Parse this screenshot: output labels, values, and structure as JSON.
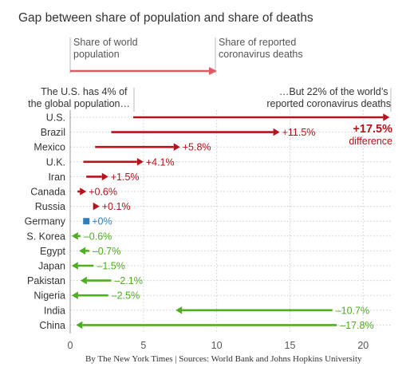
{
  "chart_data": {
    "type": "bar",
    "title": "Gap between share of population and share of deaths",
    "legend": {
      "population_label": [
        "Share of world",
        "population"
      ],
      "deaths_label": [
        "Share of reported",
        "coronavirus deaths"
      ]
    },
    "annotations": {
      "left": [
        "The U.S. has 4% of",
        "the global population…"
      ],
      "right": [
        "…But 22% of the world’s",
        "reported coronavirus deaths"
      ]
    },
    "highlight": {
      "value_label": "+17.5%",
      "sub_label": "difference"
    },
    "xlim": [
      0,
      22
    ],
    "xticks": [
      "0",
      "5",
      "10",
      "15",
      "20"
    ],
    "xtick_values": [
      0,
      5,
      10,
      15,
      20
    ],
    "rows": [
      {
        "country": "U.S.",
        "population": 4.3,
        "deaths": 21.8,
        "label": ""
      },
      {
        "country": "Brazil",
        "population": 2.8,
        "deaths": 14.3,
        "label": "+11.5%"
      },
      {
        "country": "Mexico",
        "population": 1.7,
        "deaths": 7.5,
        "label": "+5.8%"
      },
      {
        "country": "U.K.",
        "population": 0.9,
        "deaths": 5.0,
        "label": "+4.1%"
      },
      {
        "country": "Iran",
        "population": 1.1,
        "deaths": 2.6,
        "label": "+1.5%"
      },
      {
        "country": "Canada",
        "population": 0.5,
        "deaths": 1.1,
        "label": "+0.6%"
      },
      {
        "country": "Russia",
        "population": 1.9,
        "deaths": 2.0,
        "label": "+0.1%"
      },
      {
        "country": "Germany",
        "population": 1.1,
        "deaths": 1.1,
        "label": "+0%"
      },
      {
        "country": "S. Korea",
        "population": 0.7,
        "deaths": 0.1,
        "label": "–0.6%"
      },
      {
        "country": "Egypt",
        "population": 1.3,
        "deaths": 0.6,
        "label": "–0.7%"
      },
      {
        "country": "Japan",
        "population": 1.6,
        "deaths": 0.1,
        "label": "–1.5%"
      },
      {
        "country": "Pakistan",
        "population": 2.8,
        "deaths": 0.7,
        "label": "–2.1%"
      },
      {
        "country": "Nigeria",
        "population": 2.6,
        "deaths": 0.1,
        "label": "–2.5%"
      },
      {
        "country": "India",
        "population": 17.9,
        "deaths": 7.2,
        "label": "–10.7%"
      },
      {
        "country": "China",
        "population": 18.2,
        "deaths": 0.4,
        "label": "–17.8%"
      }
    ],
    "colors": {
      "increase": "#b5121b",
      "decrease": "#4daf1f",
      "neutral": "#2f7fbf",
      "legend_arrow": "#e05a62",
      "axis": "#999999",
      "grid": "#cccccc"
    }
  },
  "source_text": "By The New York Times | Sources: World Bank and Johns Hopkins University"
}
